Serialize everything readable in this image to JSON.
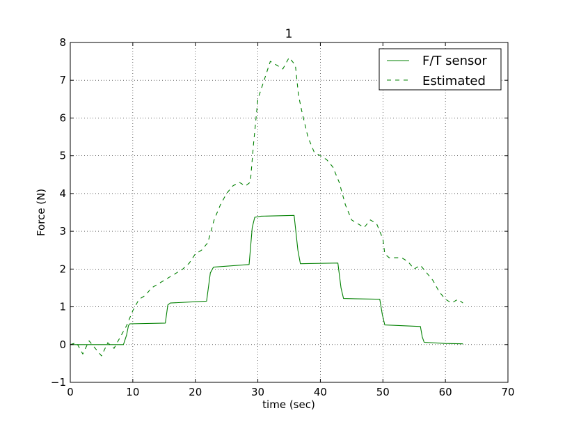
{
  "chart_data": {
    "type": "line",
    "title": "1",
    "xlabel": "time (sec)",
    "ylabel": "Force (N)",
    "xlim": [
      0,
      70
    ],
    "ylim": [
      -1,
      8
    ],
    "xticks": [
      0,
      10,
      20,
      30,
      40,
      50,
      60,
      70
    ],
    "yticks": [
      -1,
      0,
      1,
      2,
      3,
      4,
      5,
      6,
      7,
      8
    ],
    "ytick_labels": [
      "−1",
      "0",
      "1",
      "2",
      "3",
      "4",
      "5",
      "6",
      "7",
      "8"
    ],
    "grid": true,
    "legend_position": "upper right",
    "series": [
      {
        "name": "F/T sensor",
        "color": "#008000",
        "style": "solid",
        "points": [
          [
            0,
            0.0
          ],
          [
            8.5,
            0.0
          ],
          [
            9.0,
            0.25
          ],
          [
            9.3,
            0.5
          ],
          [
            9.5,
            0.55
          ],
          [
            15.2,
            0.57
          ],
          [
            15.6,
            1.05
          ],
          [
            16.0,
            1.1
          ],
          [
            21.8,
            1.15
          ],
          [
            22.4,
            1.9
          ],
          [
            22.9,
            2.05
          ],
          [
            28.6,
            2.12
          ],
          [
            29.1,
            3.1
          ],
          [
            29.5,
            3.37
          ],
          [
            30.5,
            3.4
          ],
          [
            35.8,
            3.42
          ],
          [
            36.4,
            2.5
          ],
          [
            36.8,
            2.14
          ],
          [
            42.8,
            2.16
          ],
          [
            43.3,
            1.5
          ],
          [
            43.7,
            1.22
          ],
          [
            49.5,
            1.2
          ],
          [
            49.9,
            0.8
          ],
          [
            50.3,
            0.52
          ],
          [
            56.0,
            0.48
          ],
          [
            56.3,
            0.2
          ],
          [
            56.6,
            0.06
          ],
          [
            60.0,
            0.03
          ],
          [
            62.8,
            0.02
          ]
        ]
      },
      {
        "name": "Estimated",
        "color": "#008000",
        "style": "dashed",
        "points": [
          [
            0,
            0.0
          ],
          [
            1,
            0.05
          ],
          [
            2,
            -0.25
          ],
          [
            3,
            0.1
          ],
          [
            4,
            -0.1
          ],
          [
            5,
            -0.3
          ],
          [
            6,
            0.05
          ],
          [
            7,
            -0.1
          ],
          [
            8,
            0.2
          ],
          [
            9,
            0.5
          ],
          [
            10,
            0.9
          ],
          [
            11,
            1.2
          ],
          [
            12,
            1.3
          ],
          [
            13,
            1.5
          ],
          [
            14,
            1.6
          ],
          [
            15,
            1.7
          ],
          [
            16,
            1.8
          ],
          [
            17,
            1.9
          ],
          [
            18,
            2.0
          ],
          [
            19,
            2.15
          ],
          [
            20,
            2.4
          ],
          [
            21,
            2.5
          ],
          [
            22,
            2.7
          ],
          [
            23,
            3.3
          ],
          [
            24,
            3.7
          ],
          [
            25,
            4.0
          ],
          [
            26,
            4.2
          ],
          [
            27,
            4.3
          ],
          [
            28,
            4.2
          ],
          [
            28.8,
            4.3
          ],
          [
            29.3,
            5.3
          ],
          [
            30,
            6.5
          ],
          [
            31,
            7.0
          ],
          [
            32,
            7.5
          ],
          [
            33,
            7.4
          ],
          [
            34,
            7.3
          ],
          [
            35,
            7.6
          ],
          [
            36,
            7.4
          ],
          [
            36.5,
            6.6
          ],
          [
            37,
            6.2
          ],
          [
            38,
            5.5
          ],
          [
            39,
            5.1
          ],
          [
            40,
            5.0
          ],
          [
            41,
            4.9
          ],
          [
            42,
            4.7
          ],
          [
            43,
            4.3
          ],
          [
            44,
            3.7
          ],
          [
            45,
            3.3
          ],
          [
            46,
            3.2
          ],
          [
            47,
            3.1
          ],
          [
            48,
            3.3
          ],
          [
            49,
            3.2
          ],
          [
            50,
            2.8
          ],
          [
            50.3,
            2.4
          ],
          [
            51,
            2.3
          ],
          [
            52,
            2.3
          ],
          [
            53,
            2.3
          ],
          [
            54,
            2.2
          ],
          [
            55,
            2.0
          ],
          [
            56,
            2.1
          ],
          [
            57,
            1.9
          ],
          [
            58,
            1.7
          ],
          [
            59,
            1.4
          ],
          [
            60,
            1.2
          ],
          [
            61,
            1.1
          ],
          [
            62,
            1.2
          ],
          [
            62.8,
            1.1
          ]
        ]
      }
    ]
  }
}
